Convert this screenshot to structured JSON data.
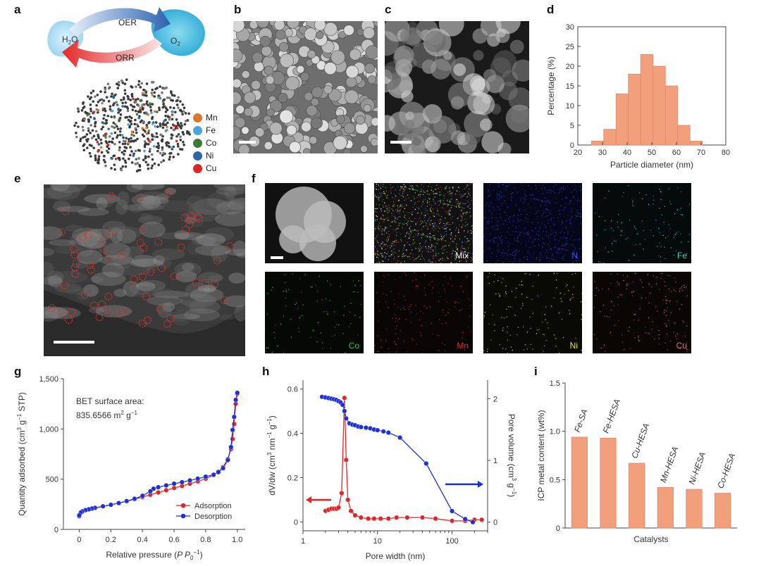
{
  "panels": {
    "a": {
      "letter": "a",
      "oer_label": "OER",
      "orr_label": "ORR",
      "reactant": "H2O",
      "product": "O2",
      "legend": [
        {
          "label": "Mn",
          "color": "#d9782f"
        },
        {
          "label": "Fe",
          "color": "#4aa6d8"
        },
        {
          "label": "Co",
          "color": "#3d7a35"
        },
        {
          "label": "Ni",
          "color": "#2f66a8"
        },
        {
          "label": "Cu",
          "color": "#d92626"
        }
      ]
    },
    "b": {
      "letter": "b"
    },
    "c": {
      "letter": "c"
    },
    "e": {
      "letter": "e"
    },
    "f": {
      "letter": "f",
      "maps": [
        {
          "label": "",
          "color": "#ffffff"
        },
        {
          "label": "Mix",
          "color": "#ffffff"
        },
        {
          "label": "N",
          "color": "#3b5bff"
        },
        {
          "label": "Fe",
          "color": "#3ad0c8"
        },
        {
          "label": "Co",
          "color": "#3fbf3f"
        },
        {
          "label": "Mn",
          "color": "#e02a2a"
        },
        {
          "label": "Ni",
          "color": "#e8e03a"
        },
        {
          "label": "Cu",
          "color": "#e07a50"
        }
      ]
    },
    "g_note": {
      "line1": "BET surface area:",
      "value": "835.6566",
      "unit": "m",
      "exp1": "2",
      "unit2": "g",
      "exp2": "−1"
    }
  },
  "chart_data": [
    {
      "id": "d",
      "letter": "d",
      "type": "bar",
      "x": [
        28,
        33,
        38,
        43,
        48,
        53,
        58,
        63,
        68
      ],
      "values": [
        1,
        4,
        13,
        18,
        23,
        20,
        15,
        5,
        1
      ],
      "bar_width": 5,
      "xlim": [
        20,
        80
      ],
      "ylim": [
        0,
        30
      ],
      "xticks": [
        "20",
        "30",
        "40",
        "50",
        "60",
        "70",
        "80"
      ],
      "yticks": [
        "0",
        "5",
        "10",
        "15",
        "20",
        "25",
        "30"
      ],
      "xlabel": "Particle diameter (nm)",
      "ylabel": "Percentage (%)",
      "color": "#f2a07c"
    },
    {
      "id": "g",
      "letter": "g",
      "type": "line",
      "xlim": [
        -0.1,
        1.05
      ],
      "ylim": [
        0,
        1500
      ],
      "xticks": [
        "0",
        "0.2",
        "0.4",
        "0.6",
        "0.8",
        "1.0"
      ],
      "yticks": [
        "0",
        "500",
        "1,000",
        "1,500"
      ],
      "xlabel": "Relative pressure (P P0−1)",
      "ylabel": "Quantity adsorbed (cm3 g−1 STP)",
      "series": [
        {
          "name": "Adsorption",
          "color": "#e0262a",
          "x": [
            0.0,
            0.01,
            0.02,
            0.04,
            0.06,
            0.08,
            0.1,
            0.15,
            0.2,
            0.25,
            0.3,
            0.35,
            0.4,
            0.45,
            0.5,
            0.55,
            0.6,
            0.65,
            0.7,
            0.75,
            0.8,
            0.85,
            0.88,
            0.91,
            0.94,
            0.96,
            0.97,
            0.98,
            0.99,
            1.0
          ],
          "y": [
            130,
            165,
            178,
            190,
            198,
            205,
            212,
            228,
            245,
            262,
            280,
            300,
            322,
            345,
            368,
            390,
            412,
            432,
            455,
            478,
            505,
            540,
            575,
            620,
            700,
            800,
            900,
            1050,
            1250,
            1350
          ]
        },
        {
          "name": "Desorption",
          "color": "#1e2fd6",
          "x": [
            1.0,
            0.99,
            0.98,
            0.97,
            0.96,
            0.94,
            0.91,
            0.88,
            0.85,
            0.8,
            0.75,
            0.7,
            0.65,
            0.6,
            0.55,
            0.5,
            0.47,
            0.45,
            0.4,
            0.35,
            0.3,
            0.25,
            0.2,
            0.15,
            0.1,
            0.08,
            0.06,
            0.04,
            0.02,
            0.01,
            0.0
          ],
          "y": [
            1360,
            1290,
            1120,
            990,
            820,
            690,
            610,
            570,
            545,
            525,
            505,
            488,
            470,
            455,
            438,
            420,
            405,
            380,
            335,
            305,
            282,
            262,
            245,
            230,
            215,
            208,
            200,
            192,
            180,
            168,
            140
          ]
        }
      ]
    },
    {
      "id": "h",
      "letter": "h",
      "type": "line",
      "xscale": "log",
      "xlim": [
        1,
        300
      ],
      "ylim": [
        -0.04,
        0.64
      ],
      "y2lim": [
        -0.14,
        2.3
      ],
      "xticks": [
        "1",
        "10",
        "100"
      ],
      "yticks": [
        "0",
        "0.2",
        "0.4",
        "0.6"
      ],
      "y2ticks": [
        "0",
        "1",
        "2"
      ],
      "xlabel": "Pore width (nm)",
      "ylabel": "dV/dw (cm3 nm−1 g−1)",
      "y2label": "Pore volume (cm3 g−1)",
      "series": [
        {
          "name": "dV/dw",
          "axis": "left",
          "color": "#e0262a",
          "x": [
            2.0,
            2.2,
            2.4,
            2.6,
            2.8,
            3.0,
            3.3,
            3.6,
            3.8,
            4.0,
            4.4,
            5.0,
            6.0,
            7.5,
            9.0,
            11,
            14,
            18,
            25,
            40,
            60,
            100,
            150,
            200,
            250
          ],
          "y": [
            0.05,
            0.055,
            0.06,
            0.06,
            0.06,
            0.065,
            0.13,
            0.56,
            0.28,
            0.1,
            0.05,
            0.03,
            0.02,
            0.015,
            0.015,
            0.015,
            0.015,
            0.02,
            0.02,
            0.02,
            0.015,
            0.005,
            0.005,
            0.01,
            0.01
          ]
        },
        {
          "name": "Pore volume",
          "axis": "right",
          "color": "#1e2fd6",
          "x": [
            1.8,
            2.0,
            2.2,
            2.4,
            2.6,
            2.8,
            3.0,
            3.2,
            3.4,
            3.6,
            3.8,
            4.2,
            4.6,
            5.0,
            5.5,
            6.0,
            7.0,
            8.0,
            9.0,
            10.0,
            12.0,
            14.0,
            20,
            45,
            100,
            150,
            190
          ],
          "y": [
            2.03,
            2.02,
            2.01,
            2.0,
            1.99,
            1.98,
            1.96,
            1.94,
            1.9,
            1.8,
            1.68,
            1.6,
            1.58,
            1.57,
            1.55,
            1.54,
            1.53,
            1.52,
            1.5,
            1.49,
            1.47,
            1.45,
            1.37,
            0.95,
            0.18,
            0.05,
            0.0
          ]
        }
      ]
    },
    {
      "id": "i",
      "letter": "i",
      "type": "bar",
      "categories": [
        "Fe-SA",
        "Fe-HESA",
        "Cu-HESA",
        "Mn-HESA",
        "Ni-HESA",
        "Co-HESA"
      ],
      "values": [
        0.94,
        0.93,
        0.67,
        0.42,
        0.4,
        0.36
      ],
      "ylim": [
        0,
        1.5
      ],
      "yticks": [
        "0",
        "0.5",
        "1.0",
        "1.5"
      ],
      "xlabel": "Catalysts",
      "ylabel": "ICP metal content (wt%)",
      "color": "#f2a07c"
    }
  ]
}
